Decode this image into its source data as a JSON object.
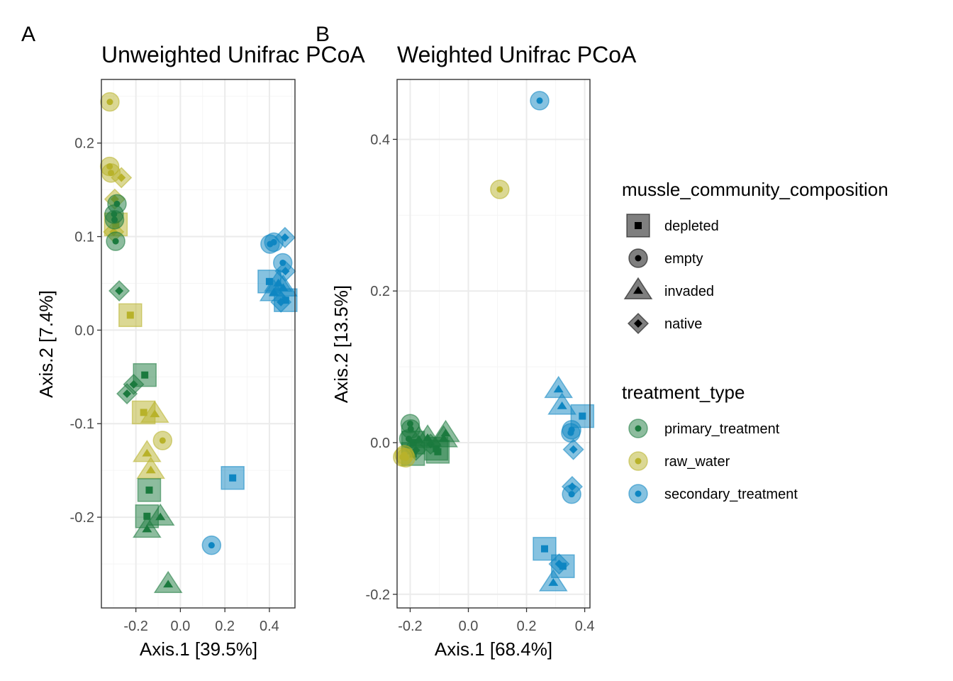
{
  "panels": {
    "a": {
      "letter": "A"
    },
    "b": {
      "letter": "B"
    }
  },
  "legend": {
    "shape_title": "mussle_community_composition",
    "shape_items": [
      {
        "label": "depleted",
        "shape": "square"
      },
      {
        "label": "empty",
        "shape": "circle"
      },
      {
        "label": "invaded",
        "shape": "triangle"
      },
      {
        "label": "native",
        "shape": "diamond"
      }
    ],
    "color_title": "treatment_type",
    "color_items": [
      {
        "label": "primary_treatment",
        "color": "#1b7a3e"
      },
      {
        "label": "raw_water",
        "color": "#b8b22a"
      },
      {
        "label": "secondary_treatment",
        "color": "#0e86c2"
      }
    ]
  },
  "chart_data": [
    {
      "type": "scatter",
      "title": "Unweighted Unifrac PCoA",
      "xlabel": "Axis.1   [39.5%]",
      "ylabel": "Axis.2   [7.4%]",
      "xlim": [
        -0.355,
        0.515
      ],
      "ylim": [
        -0.297,
        0.268
      ],
      "xticks": [
        -0.2,
        0.0,
        0.2,
        0.4
      ],
      "xtick_labels": [
        "-0.2",
        "0.0",
        "0.2",
        "0.4"
      ],
      "yticks": [
        -0.2,
        -0.1,
        0.0,
        0.1,
        0.2
      ],
      "ytick_labels": [
        "-0.2",
        "-0.1",
        "0.0",
        "0.1",
        "0.2"
      ],
      "grid": true,
      "legend": "right",
      "points": [
        {
          "x": -0.317,
          "y": 0.244,
          "shape": "circle",
          "group": "raw_water"
        },
        {
          "x": -0.318,
          "y": 0.175,
          "shape": "circle",
          "group": "raw_water"
        },
        {
          "x": -0.312,
          "y": 0.168,
          "shape": "circle",
          "group": "raw_water"
        },
        {
          "x": -0.265,
          "y": 0.163,
          "shape": "diamond",
          "group": "raw_water"
        },
        {
          "x": -0.295,
          "y": 0.14,
          "shape": "diamond",
          "group": "raw_water"
        },
        {
          "x": -0.29,
          "y": 0.113,
          "shape": "square",
          "group": "raw_water"
        },
        {
          "x": -0.3,
          "y": 0.105,
          "shape": "diamond",
          "group": "raw_water"
        },
        {
          "x": -0.285,
          "y": 0.135,
          "shape": "circle",
          "group": "primary_treatment"
        },
        {
          "x": -0.298,
          "y": 0.124,
          "shape": "circle",
          "group": "primary_treatment"
        },
        {
          "x": -0.296,
          "y": 0.118,
          "shape": "circle",
          "group": "primary_treatment"
        },
        {
          "x": -0.291,
          "y": 0.095,
          "shape": "circle",
          "group": "primary_treatment"
        },
        {
          "x": -0.275,
          "y": 0.042,
          "shape": "diamond",
          "group": "primary_treatment"
        },
        {
          "x": -0.225,
          "y": 0.016,
          "shape": "square",
          "group": "raw_water"
        },
        {
          "x": -0.16,
          "y": -0.048,
          "shape": "square",
          "group": "primary_treatment"
        },
        {
          "x": -0.21,
          "y": -0.058,
          "shape": "diamond",
          "group": "primary_treatment"
        },
        {
          "x": -0.24,
          "y": -0.068,
          "shape": "diamond",
          "group": "primary_treatment"
        },
        {
          "x": -0.165,
          "y": -0.088,
          "shape": "square",
          "group": "raw_water"
        },
        {
          "x": -0.115,
          "y": -0.09,
          "shape": "triangle",
          "group": "raw_water"
        },
        {
          "x": -0.08,
          "y": -0.118,
          "shape": "circle",
          "group": "raw_water"
        },
        {
          "x": -0.15,
          "y": -0.132,
          "shape": "triangle",
          "group": "raw_water"
        },
        {
          "x": -0.133,
          "y": -0.15,
          "shape": "triangle",
          "group": "raw_water"
        },
        {
          "x": -0.14,
          "y": -0.171,
          "shape": "square",
          "group": "primary_treatment"
        },
        {
          "x": -0.15,
          "y": -0.199,
          "shape": "square",
          "group": "primary_treatment"
        },
        {
          "x": -0.09,
          "y": -0.2,
          "shape": "triangle",
          "group": "primary_treatment"
        },
        {
          "x": -0.15,
          "y": -0.213,
          "shape": "triangle",
          "group": "primary_treatment"
        },
        {
          "x": -0.055,
          "y": -0.272,
          "shape": "triangle",
          "group": "primary_treatment"
        },
        {
          "x": 0.14,
          "y": -0.23,
          "shape": "circle",
          "group": "secondary_treatment"
        },
        {
          "x": 0.235,
          "y": -0.158,
          "shape": "square",
          "group": "secondary_treatment"
        },
        {
          "x": 0.403,
          "y": 0.092,
          "shape": "circle",
          "group": "secondary_treatment"
        },
        {
          "x": 0.42,
          "y": 0.094,
          "shape": "circle",
          "group": "secondary_treatment"
        },
        {
          "x": 0.47,
          "y": 0.099,
          "shape": "diamond",
          "group": "secondary_treatment"
        },
        {
          "x": 0.46,
          "y": 0.072,
          "shape": "circle",
          "group": "secondary_treatment"
        },
        {
          "x": 0.472,
          "y": 0.063,
          "shape": "diamond",
          "group": "secondary_treatment"
        },
        {
          "x": 0.4,
          "y": 0.052,
          "shape": "square",
          "group": "secondary_treatment"
        },
        {
          "x": 0.44,
          "y": 0.05,
          "shape": "triangle",
          "group": "secondary_treatment"
        },
        {
          "x": 0.462,
          "y": 0.045,
          "shape": "triangle",
          "group": "secondary_treatment"
        },
        {
          "x": 0.42,
          "y": 0.04,
          "shape": "triangle",
          "group": "secondary_treatment"
        },
        {
          "x": 0.473,
          "y": 0.032,
          "shape": "square",
          "group": "secondary_treatment"
        },
        {
          "x": 0.452,
          "y": 0.03,
          "shape": "diamond",
          "group": "secondary_treatment"
        }
      ]
    },
    {
      "type": "scatter",
      "title": "Weighted Unifrac PCoA",
      "xlabel": "Axis.1   [68.4%]",
      "ylabel": "Axis.2   [13.5%]",
      "xlim": [
        -0.245,
        0.418
      ],
      "ylim": [
        -0.218,
        0.479
      ],
      "xticks": [
        -0.2,
        0.0,
        0.2,
        0.4
      ],
      "xtick_labels": [
        "-0.2",
        "0.0",
        "0.2",
        "0.4"
      ],
      "yticks": [
        -0.2,
        0.0,
        0.2,
        0.4
      ],
      "ytick_labels": [
        "-0.2",
        "0.0",
        "0.2",
        "0.4"
      ],
      "grid": true,
      "legend": "right",
      "points": [
        {
          "x": 0.245,
          "y": 0.451,
          "shape": "circle",
          "group": "secondary_treatment"
        },
        {
          "x": 0.108,
          "y": 0.334,
          "shape": "circle",
          "group": "raw_water"
        },
        {
          "x": -0.2,
          "y": 0.025,
          "shape": "circle",
          "group": "primary_treatment"
        },
        {
          "x": -0.198,
          "y": 0.018,
          "shape": "circle",
          "group": "primary_treatment"
        },
        {
          "x": -0.205,
          "y": 0.005,
          "shape": "circle",
          "group": "primary_treatment"
        },
        {
          "x": -0.19,
          "y": 0.0,
          "shape": "square",
          "group": "primary_treatment"
        },
        {
          "x": -0.17,
          "y": 0.004,
          "shape": "triangle",
          "group": "primary_treatment"
        },
        {
          "x": -0.14,
          "y": 0.006,
          "shape": "triangle",
          "group": "primary_treatment"
        },
        {
          "x": -0.13,
          "y": -0.002,
          "shape": "diamond",
          "group": "primary_treatment"
        },
        {
          "x": -0.11,
          "y": -0.008,
          "shape": "square",
          "group": "primary_treatment"
        },
        {
          "x": -0.105,
          "y": -0.012,
          "shape": "square",
          "group": "primary_treatment"
        },
        {
          "x": -0.085,
          "y": 0.005,
          "shape": "triangle",
          "group": "primary_treatment"
        },
        {
          "x": -0.078,
          "y": 0.012,
          "shape": "triangle",
          "group": "primary_treatment"
        },
        {
          "x": -0.18,
          "y": -0.01,
          "shape": "diamond",
          "group": "primary_treatment"
        },
        {
          "x": -0.19,
          "y": -0.015,
          "shape": "square",
          "group": "primary_treatment"
        },
        {
          "x": -0.22,
          "y": -0.016,
          "shape": "circle",
          "group": "raw_water"
        },
        {
          "x": -0.226,
          "y": -0.019,
          "shape": "circle",
          "group": "raw_water"
        },
        {
          "x": -0.215,
          "y": -0.02,
          "shape": "circle",
          "group": "raw_water"
        },
        {
          "x": 0.31,
          "y": 0.07,
          "shape": "triangle",
          "group": "secondary_treatment"
        },
        {
          "x": 0.322,
          "y": 0.048,
          "shape": "triangle",
          "group": "secondary_treatment"
        },
        {
          "x": 0.392,
          "y": 0.035,
          "shape": "square",
          "group": "secondary_treatment"
        },
        {
          "x": 0.355,
          "y": 0.017,
          "shape": "circle",
          "group": "secondary_treatment"
        },
        {
          "x": 0.352,
          "y": 0.013,
          "shape": "circle",
          "group": "secondary_treatment"
        },
        {
          "x": 0.361,
          "y": -0.009,
          "shape": "diamond",
          "group": "secondary_treatment"
        },
        {
          "x": 0.357,
          "y": -0.058,
          "shape": "diamond",
          "group": "secondary_treatment"
        },
        {
          "x": 0.355,
          "y": -0.068,
          "shape": "circle",
          "group": "secondary_treatment"
        },
        {
          "x": 0.262,
          "y": -0.14,
          "shape": "square",
          "group": "secondary_treatment"
        },
        {
          "x": 0.312,
          "y": -0.16,
          "shape": "diamond",
          "group": "secondary_treatment"
        },
        {
          "x": 0.325,
          "y": -0.163,
          "shape": "square",
          "group": "secondary_treatment"
        },
        {
          "x": 0.292,
          "y": -0.185,
          "shape": "triangle",
          "group": "secondary_treatment"
        }
      ]
    }
  ]
}
